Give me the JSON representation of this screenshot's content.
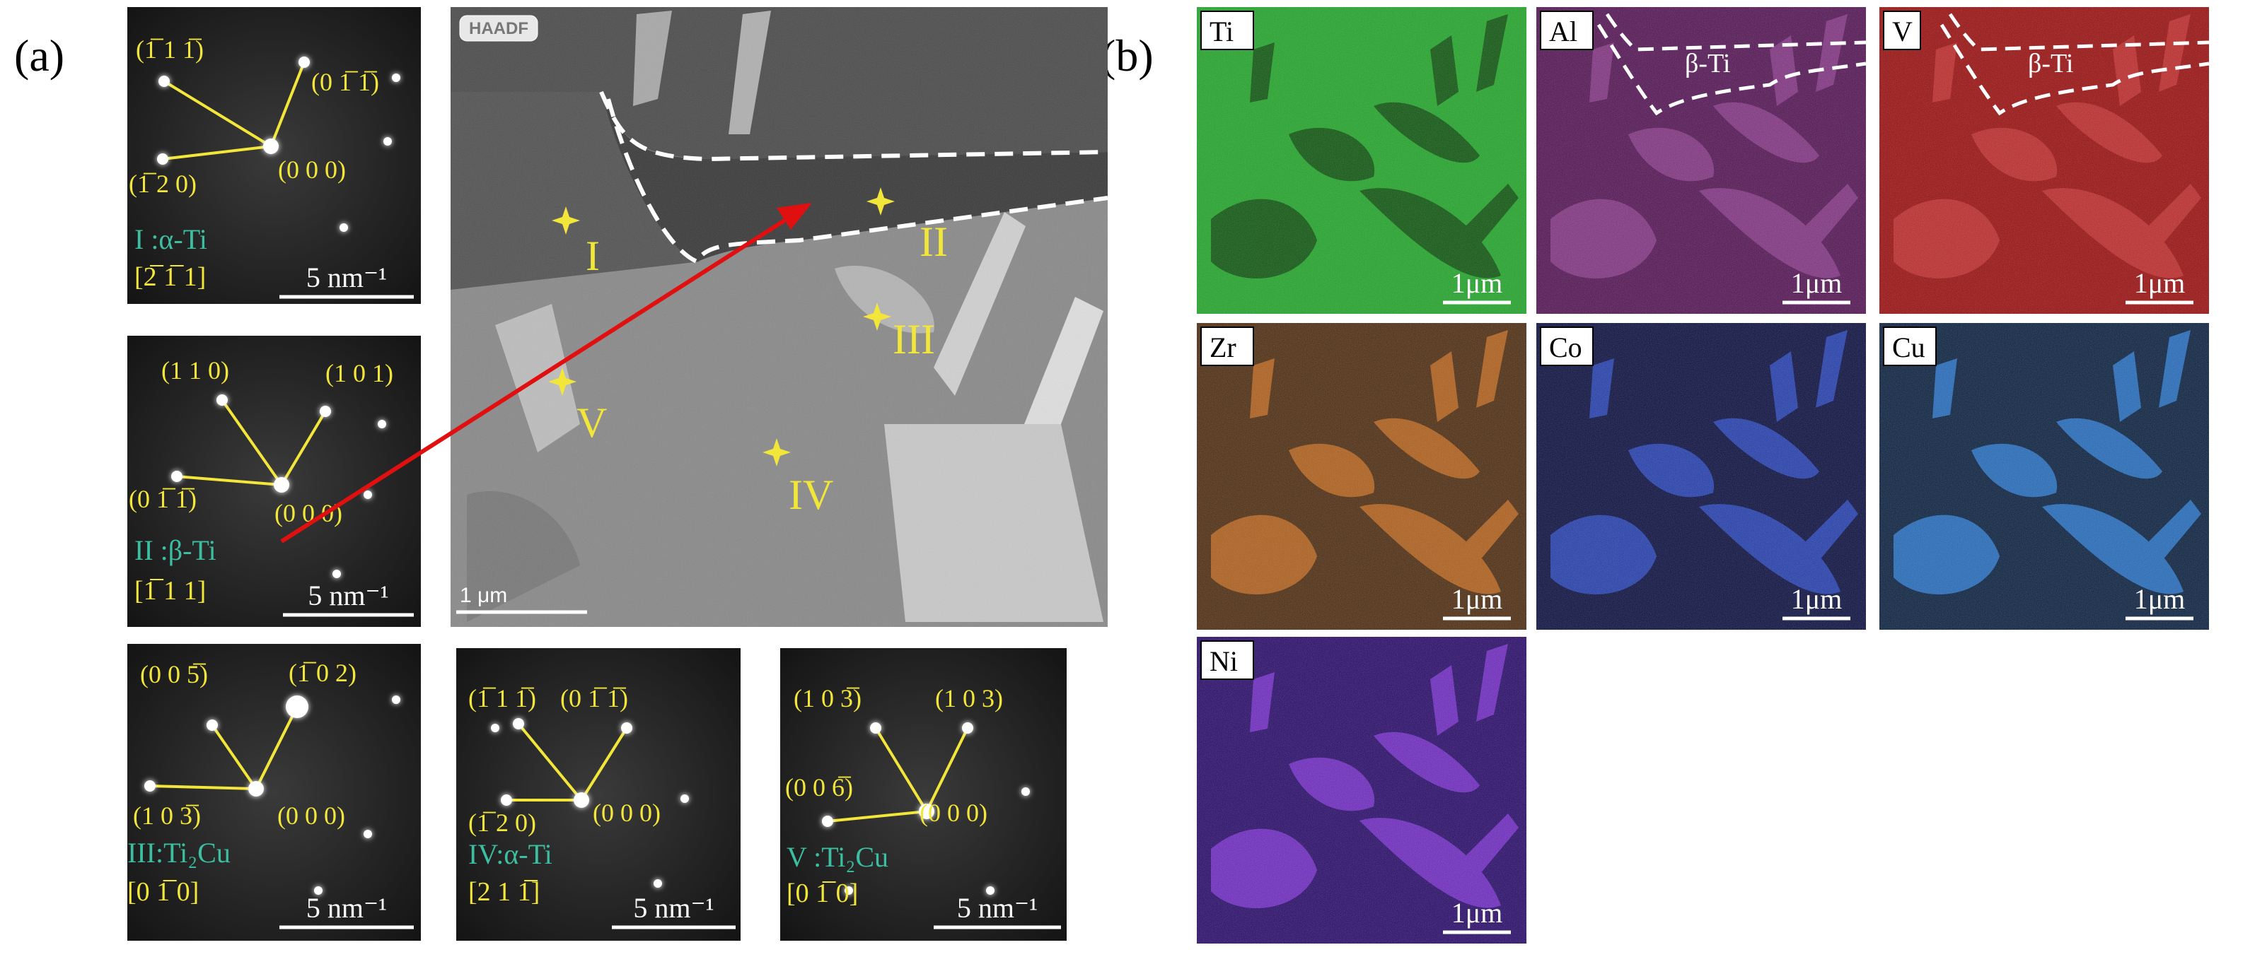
{
  "panel_a": {
    "label": "(a)",
    "patterns": [
      {
        "spots": [
          "(1̅ 1 1̅)",
          "(0 1̅ 1̅)",
          "(1̅ 2 0)",
          "(0 0 0)"
        ],
        "phase": "I :α-Ti",
        "zone": "[2̅ 1̅ 1]",
        "scale": "5 nm⁻¹"
      },
      {
        "spots": [
          "(1 1 0)",
          "(1 0 1)",
          "(0 1̅ 1̅)",
          "(0 0 0)"
        ],
        "phase": "II :β-Ti",
        "zone": "[1̅ 1 1]",
        "scale": "5 nm⁻¹"
      },
      {
        "spots": [
          "(0 0 5̅)",
          "(1̅ 0 2)",
          "(1 0 3̅)",
          "(0 0 0)"
        ],
        "phase": "III:Ti₂Cu",
        "zone": "[0 1̅ 0]",
        "scale": "5 nm⁻¹"
      },
      {
        "spots": [
          "(1̅ 1 1̅)",
          "(0 1̅ 1̅)",
          "(1̅ 2 0)",
          "(0 0 0)"
        ],
        "phase": "IV:α-Ti",
        "zone": "[2 1 1̅]",
        "scale": "5 nm⁻¹"
      },
      {
        "spots": [
          "(1 0 3̅)",
          "(1 0 3)",
          "(0 0 6̅)",
          "(0 0 0)"
        ],
        "phase": "V :Ti₂Cu",
        "zone": "[0 1̅ 0]",
        "scale": "5 nm⁻¹"
      }
    ],
    "haadf": {
      "badge": "HAADF",
      "regions": [
        "I",
        "II",
        "III",
        "IV",
        "V"
      ],
      "scale": "1 μm"
    }
  },
  "panel_b": {
    "label": "(b)",
    "maps": [
      {
        "element": "Ti",
        "scale": "1μm"
      },
      {
        "element": "Al",
        "scale": "1μm",
        "region": "β-Ti"
      },
      {
        "element": "V",
        "scale": "1μm",
        "region": "β-Ti"
      },
      {
        "element": "Zr",
        "scale": "1μm"
      },
      {
        "element": "Co",
        "scale": "1μm"
      },
      {
        "element": "Cu",
        "scale": "1μm"
      },
      {
        "element": "Ni",
        "scale": "1μm"
      }
    ]
  }
}
